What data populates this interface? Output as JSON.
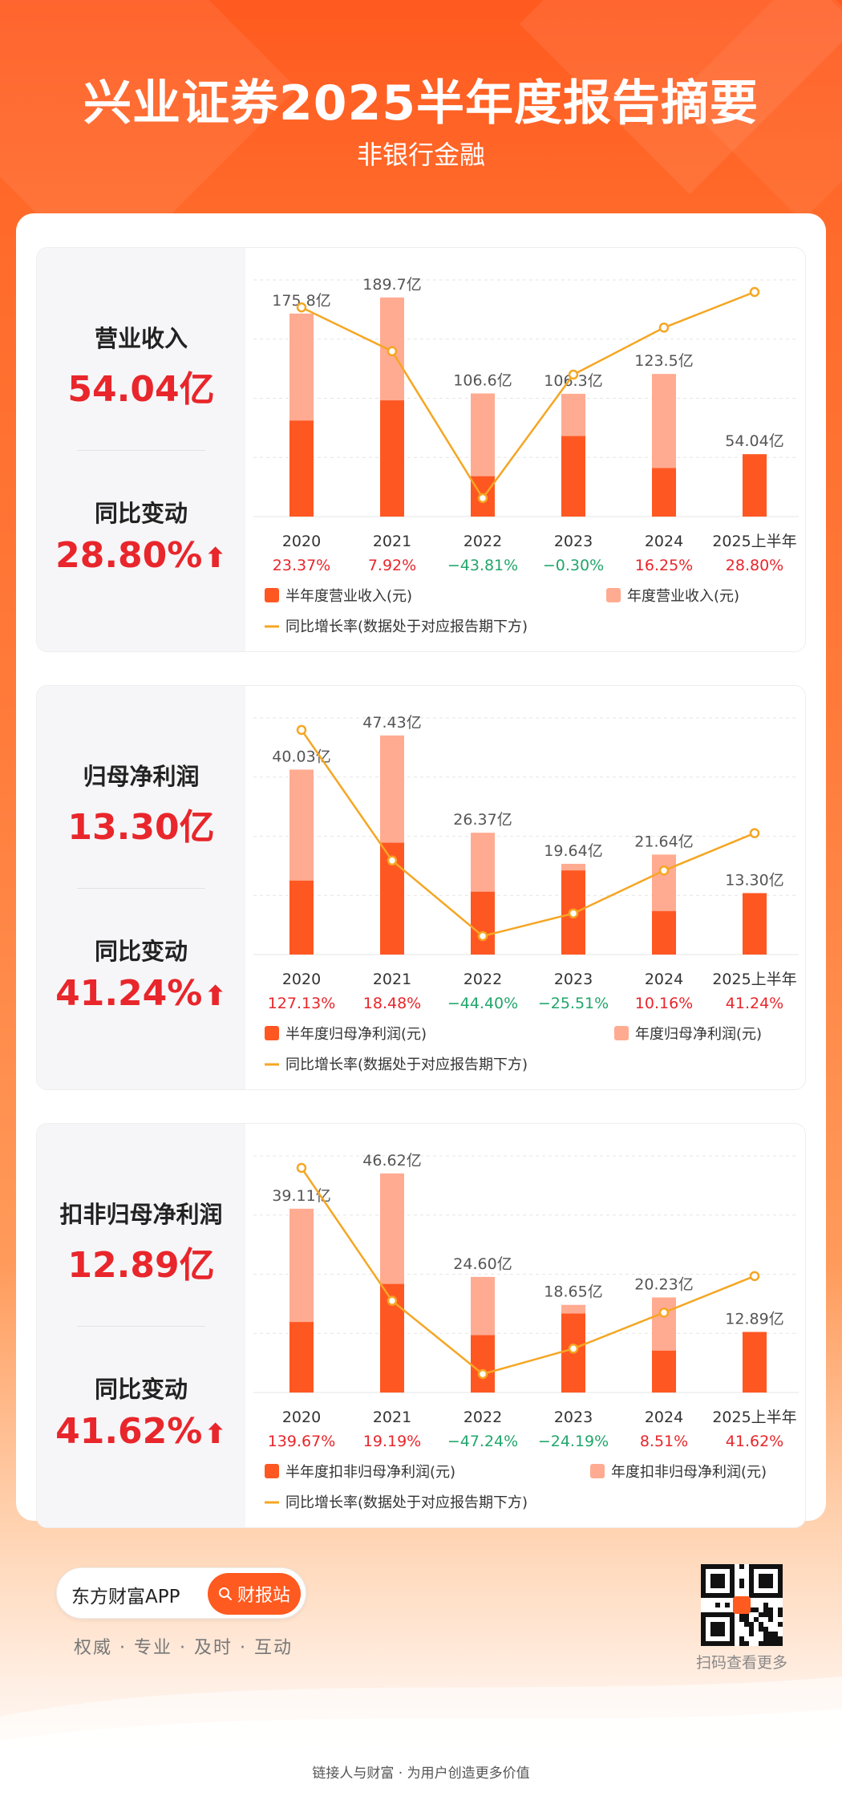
{
  "header": {
    "title": "兴业证券2025半年度报告摘要",
    "subtitle": "非银行金融"
  },
  "colors": {
    "brand": "#ff5a1f",
    "half_year_bar": "#ff5722",
    "annual_bar": "#ffab91",
    "growth_line": "#f5a623",
    "positive": "#e8262b",
    "negative": "#21a66b"
  },
  "sections": [
    {
      "kpi_label": "营业收入",
      "kpi_value": "54.04亿",
      "change_label": "同比变动",
      "change_value": "28.80%",
      "legend_half": "半年度营业收入(元)",
      "legend_annual": "年度营业收入(元)",
      "legend_line": "同比增长率(数据处于对应报告期下方)"
    },
    {
      "kpi_label": "归母净利润",
      "kpi_value": "13.30亿",
      "change_label": "同比变动",
      "change_value": "41.24%",
      "legend_half": "半年度归母净利润(元)",
      "legend_annual": "年度归母净利润(元)",
      "legend_line": "同比增长率(数据处于对应报告期下方)"
    },
    {
      "kpi_label": "扣非归母净利润",
      "kpi_value": "12.89亿",
      "change_label": "同比变动",
      "change_value": "41.62%",
      "legend_half": "半年度扣非归母净利润(元)",
      "legend_annual": "年度扣非归母净利润(元)",
      "legend_line": "同比增长率(数据处于对应报告期下方)"
    }
  ],
  "chart_data": [
    {
      "type": "bar",
      "title": "营业收入",
      "categories": [
        "2020",
        "2021",
        "2022",
        "2023",
        "2024",
        "2025上半年"
      ],
      "series": [
        {
          "name": "半年度营业收入(元)",
          "values": [
            83.1,
            100.6,
            34.9,
            69.7,
            42.0,
            54.04
          ]
        },
        {
          "name": "年度营业收入(元)",
          "values": [
            175.8,
            189.7,
            106.6,
            106.3,
            123.5,
            null
          ]
        },
        {
          "name": "同比增长率",
          "values": [
            23.37,
            7.92,
            -43.81,
            -0.3,
            16.25,
            28.8
          ]
        }
      ],
      "total_labels": [
        "175.8亿",
        "189.7亿",
        "106.6亿",
        "106.3亿",
        "123.5亿",
        "54.04亿"
      ],
      "growth_labels": [
        "23.37%",
        "7.92%",
        "−43.81%",
        "−0.30%",
        "16.25%",
        "28.80%"
      ]
    },
    {
      "type": "bar",
      "title": "归母净利润",
      "categories": [
        "2020",
        "2021",
        "2022",
        "2023",
        "2024",
        "2025上半年"
      ],
      "series": [
        {
          "name": "半年度归母净利润(元)",
          "values": [
            16.0,
            24.2,
            13.6,
            18.2,
            9.4,
            13.3
          ]
        },
        {
          "name": "年度归母净利润(元)",
          "values": [
            40.03,
            47.43,
            26.37,
            19.64,
            21.64,
            null
          ]
        },
        {
          "name": "同比增长率",
          "values": [
            127.13,
            18.48,
            -44.4,
            -25.51,
            10.16,
            41.24
          ]
        }
      ],
      "total_labels": [
        "40.03亿",
        "47.43亿",
        "26.37亿",
        "19.64亿",
        "21.64亿",
        "13.30亿"
      ],
      "growth_labels": [
        "127.13%",
        "18.48%",
        "−44.40%",
        "−25.51%",
        "10.16%",
        "41.24%"
      ]
    },
    {
      "type": "bar",
      "title": "扣非归母净利润",
      "categories": [
        "2020",
        "2021",
        "2022",
        "2023",
        "2024",
        "2025上半年"
      ],
      "series": [
        {
          "name": "半年度扣非归母净利润(元)",
          "values": [
            15.0,
            23.1,
            12.2,
            16.8,
            8.9,
            12.89
          ]
        },
        {
          "name": "年度扣非归母净利润(元)",
          "values": [
            39.11,
            46.62,
            24.6,
            18.65,
            20.23,
            null
          ]
        },
        {
          "name": "同比增长率",
          "values": [
            139.67,
            19.19,
            -47.24,
            -24.19,
            8.51,
            41.62
          ]
        }
      ],
      "total_labels": [
        "39.11亿",
        "46.62亿",
        "24.60亿",
        "18.65亿",
        "20.23亿",
        "12.89亿"
      ],
      "growth_labels": [
        "139.67%",
        "19.19%",
        "−47.24%",
        "−24.19%",
        "8.51%",
        "41.62%"
      ]
    }
  ],
  "footer": {
    "app_name": "东方财富APP",
    "app_button": "财报站",
    "slogan": "权威 · 专业 · 及时 · 互动",
    "qr_caption": "扫码查看更多",
    "tagline": "链接人与财富 · 为用户创造更多价值"
  }
}
